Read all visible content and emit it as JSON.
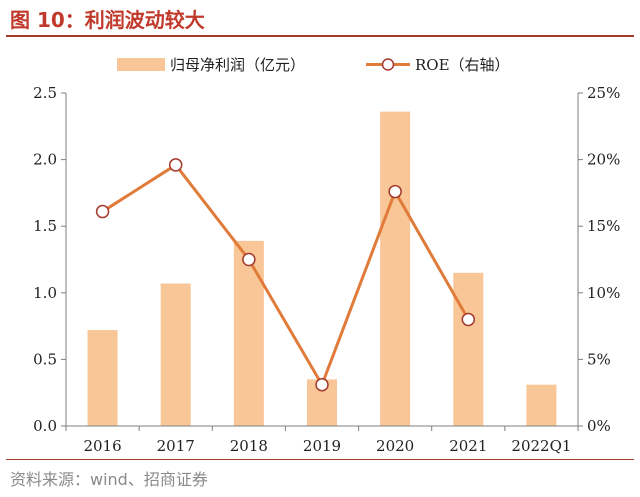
{
  "header": {
    "title": "图 10：利润波动较大"
  },
  "footer": {
    "source": "资料来源：wind、招商证券"
  },
  "chart_data": {
    "type": "bar",
    "categories": [
      "2016",
      "2017",
      "2018",
      "2019",
      "2020",
      "2021",
      "2022Q1"
    ],
    "series": [
      {
        "name": "归母净利润（亿元）",
        "type": "bar",
        "axis": "left",
        "color": "#f9c697",
        "values": [
          0.72,
          1.07,
          1.39,
          0.35,
          2.36,
          1.15,
          0.31
        ]
      },
      {
        "name": "ROE（右轴）",
        "type": "line",
        "axis": "right",
        "color": "#e07b39",
        "values": [
          16.1,
          19.6,
          12.5,
          3.1,
          17.6,
          8.0,
          null
        ]
      }
    ],
    "y_left": {
      "ylim": [
        0,
        2.5
      ],
      "ticks": [
        "0.0",
        "0.5",
        "1.0",
        "1.5",
        "2.0",
        "2.5"
      ]
    },
    "y_right": {
      "ylim": [
        0,
        25
      ],
      "ticks": [
        "0%",
        "5%",
        "10%",
        "15%",
        "20%",
        "25%"
      ]
    },
    "grid": false,
    "legend": "top-center"
  }
}
